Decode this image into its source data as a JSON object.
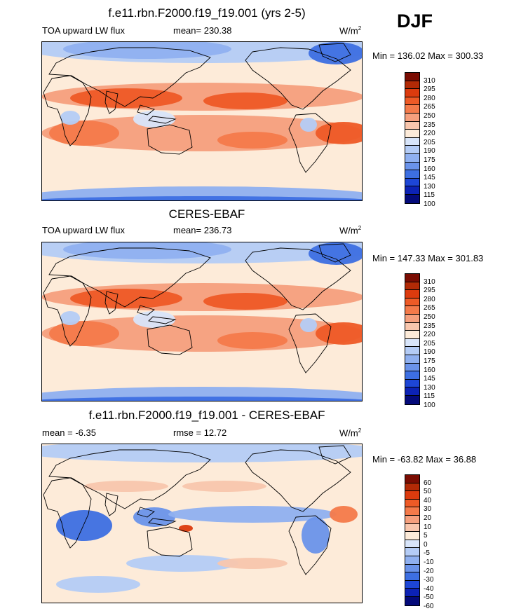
{
  "season": "DJF",
  "panels": [
    {
      "title": "f.e11.rbn.F2000.f19_f19.001 (yrs 2-5)",
      "left_label": "TOA upward LW flux",
      "center_label": "mean= 230.38",
      "units_base": "W/m",
      "units_sup": "2",
      "minmax": "Min = 136.02 Max = 300.33",
      "levels": [
        "310",
        "295",
        "280",
        "265",
        "250",
        "235",
        "220",
        "205",
        "190",
        "175",
        "160",
        "145",
        "130",
        "115",
        "100"
      ]
    },
    {
      "title": "CERES-EBAF",
      "left_label": "TOA upward LW flux",
      "center_label": "mean= 236.73",
      "units_base": "W/m",
      "units_sup": "2",
      "minmax": "Min = 147.33 Max = 301.83",
      "levels": [
        "310",
        "295",
        "280",
        "265",
        "250",
        "235",
        "220",
        "205",
        "190",
        "175",
        "160",
        "145",
        "130",
        "115",
        "100"
      ]
    },
    {
      "title": "f.e11.rbn.F2000.f19_f19.001 - CERES-EBAF",
      "left_label": "mean =  -6.35",
      "center_label": "rmse =  12.72",
      "units_base": "W/m",
      "units_sup": "2",
      "minmax": "Min = -63.82 Max =  36.88",
      "levels": [
        "60",
        "50",
        "40",
        "30",
        "20",
        "10",
        "5",
        "0",
        "-5",
        "-10",
        "-20",
        "-30",
        "-40",
        "-50",
        "-60"
      ]
    }
  ],
  "colors": {
    "abs_scale": [
      "#7a0c02",
      "#b22a06",
      "#dc3b0e",
      "#ee5a26",
      "#f47a4a",
      "#f59f7d",
      "#f8c6ad",
      "#fdebd9",
      "#d8e5fa",
      "#b4ccf6",
      "#8fb0f0",
      "#6a93ea",
      "#3d6fe2",
      "#1d46d6",
      "#0c22b5",
      "#040a7a"
    ],
    "diff_scale": [
      "#7a0c02",
      "#b22a06",
      "#dc3b0e",
      "#ee5a26",
      "#f47a4a",
      "#f59f7d",
      "#f8c6ad",
      "#fdebd9",
      "#d8e5fa",
      "#b4ccf6",
      "#8fb0f0",
      "#6a93ea",
      "#3d6fe2",
      "#1d46d6",
      "#0c22b5",
      "#040a7a"
    ]
  }
}
